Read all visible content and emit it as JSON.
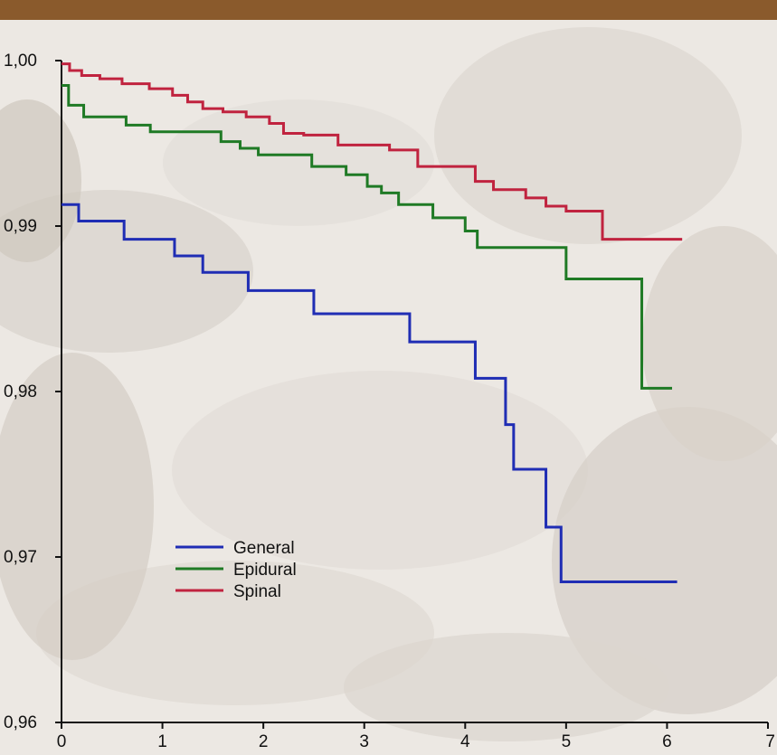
{
  "colors": {
    "header_bar": "#8a5a2c",
    "background": "#ece8e3",
    "axis": "#111111"
  },
  "chart_data": {
    "type": "line",
    "step": true,
    "title": "",
    "xlabel": "",
    "ylabel": "",
    "xlim": [
      0,
      7
    ],
    "ylim": [
      0.96,
      1.0
    ],
    "x_ticks": [
      0,
      1,
      2,
      3,
      4,
      5,
      6,
      7
    ],
    "x_tick_labels": [
      "0",
      "1",
      "2",
      "3",
      "4",
      "5",
      "6",
      "7"
    ],
    "y_ticks": [
      0.96,
      0.97,
      0.98,
      0.99,
      1.0
    ],
    "y_tick_labels": [
      "0,96",
      "0,97",
      "0,98",
      "0,99",
      "1,00"
    ],
    "grid": false,
    "legend_position": "lower-left",
    "series": [
      {
        "name": "General",
        "color": "#1f2db4",
        "points": [
          [
            0,
            0.9913
          ],
          [
            0.17,
            0.9903
          ],
          [
            0.62,
            0.9892
          ],
          [
            1.12,
            0.9882
          ],
          [
            1.4,
            0.9872
          ],
          [
            1.85,
            0.9861
          ],
          [
            2.5,
            0.9847
          ],
          [
            3.45,
            0.983
          ],
          [
            4.1,
            0.9808
          ],
          [
            4.4,
            0.978
          ],
          [
            4.48,
            0.9753
          ],
          [
            4.8,
            0.9718
          ],
          [
            4.95,
            0.9685
          ],
          [
            6.1,
            0.9685
          ]
        ]
      },
      {
        "name": "Epidural",
        "color": "#1f7a25",
        "points": [
          [
            0,
            0.9985
          ],
          [
            0.07,
            0.9973
          ],
          [
            0.22,
            0.9966
          ],
          [
            0.64,
            0.9961
          ],
          [
            0.88,
            0.9957
          ],
          [
            1.58,
            0.9951
          ],
          [
            1.77,
            0.9947
          ],
          [
            1.95,
            0.9943
          ],
          [
            2.48,
            0.9936
          ],
          [
            2.82,
            0.9931
          ],
          [
            3.03,
            0.9924
          ],
          [
            3.17,
            0.992
          ],
          [
            3.34,
            0.9913
          ],
          [
            3.68,
            0.9905
          ],
          [
            4.0,
            0.9897
          ],
          [
            4.12,
            0.9887
          ],
          [
            5.0,
            0.9868
          ],
          [
            5.75,
            0.9802
          ],
          [
            6.05,
            0.9802
          ]
        ]
      },
      {
        "name": "Spinal",
        "color": "#c0233f",
        "points": [
          [
            0,
            0.9998
          ],
          [
            0.08,
            0.9994
          ],
          [
            0.2,
            0.9991
          ],
          [
            0.38,
            0.9989
          ],
          [
            0.6,
            0.9986
          ],
          [
            0.87,
            0.9983
          ],
          [
            1.1,
            0.9979
          ],
          [
            1.25,
            0.9975
          ],
          [
            1.4,
            0.9971
          ],
          [
            1.6,
            0.9969
          ],
          [
            1.83,
            0.9966
          ],
          [
            2.06,
            0.9962
          ],
          [
            2.2,
            0.9956
          ],
          [
            2.4,
            0.9955
          ],
          [
            2.74,
            0.9949
          ],
          [
            3.25,
            0.9946
          ],
          [
            3.53,
            0.9936
          ],
          [
            4.1,
            0.9927
          ],
          [
            4.28,
            0.9922
          ],
          [
            4.6,
            0.9917
          ],
          [
            4.8,
            0.9912
          ],
          [
            5.0,
            0.9909
          ],
          [
            5.36,
            0.9892
          ],
          [
            6.15,
            0.9892
          ]
        ]
      }
    ]
  }
}
